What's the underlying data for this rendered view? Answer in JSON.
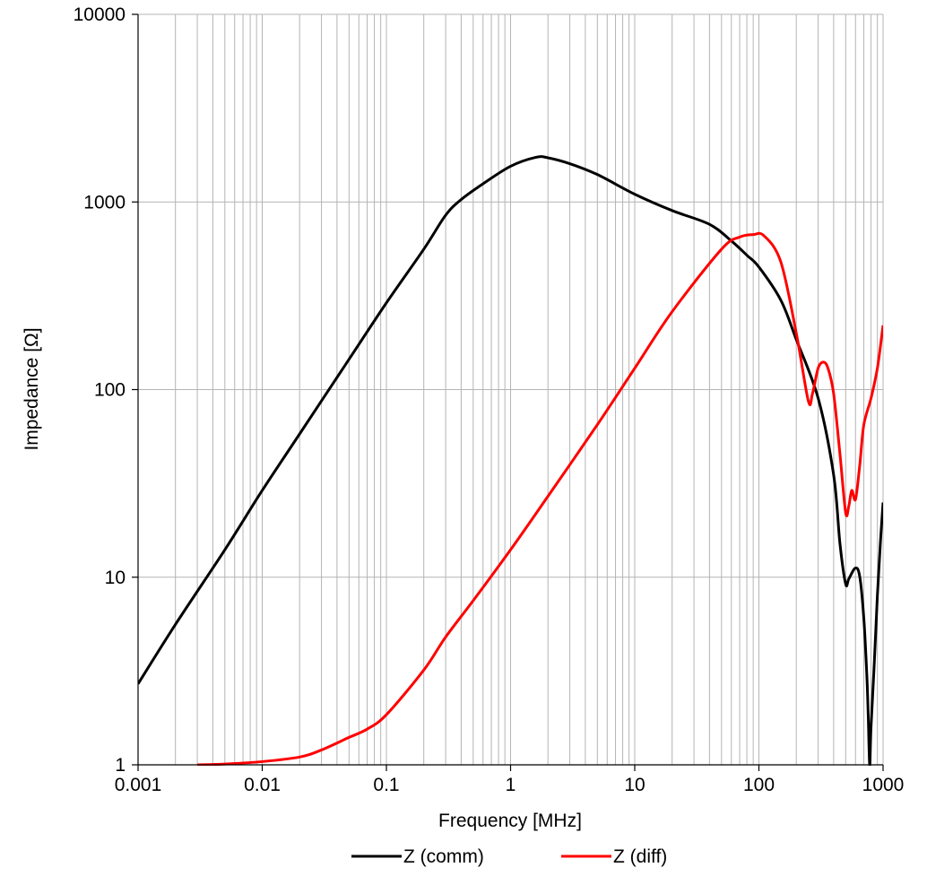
{
  "chart_data": {
    "type": "line",
    "title": "",
    "xlabel": "Frequency [MHz]",
    "ylabel": "Impedance [Ω]",
    "xscale": "log",
    "yscale": "log",
    "xlim": [
      0.001,
      1000
    ],
    "ylim": [
      1,
      10000
    ],
    "grid": "on (major and minor vertical, major horizontal)",
    "legend": "bottom",
    "x_ticks": [
      "0.001",
      "0.01",
      "0.1",
      "1",
      "10",
      "100",
      "1000"
    ],
    "y_ticks": [
      "1",
      "10",
      "100",
      "1000",
      "10000"
    ],
    "series": [
      {
        "name": "Z (comm)",
        "color": "#000000",
        "points": [
          [
            0.001,
            2.7
          ],
          [
            0.002,
            5.6
          ],
          [
            0.005,
            14
          ],
          [
            0.01,
            29
          ],
          [
            0.02,
            58
          ],
          [
            0.05,
            145
          ],
          [
            0.1,
            290
          ],
          [
            0.2,
            560
          ],
          [
            0.3,
            850
          ],
          [
            0.4,
            1030
          ],
          [
            0.6,
            1250
          ],
          [
            1.0,
            1550
          ],
          [
            1.6,
            1730
          ],
          [
            2.0,
            1720
          ],
          [
            3.0,
            1600
          ],
          [
            5.0,
            1400
          ],
          [
            10,
            1100
          ],
          [
            20,
            900
          ],
          [
            40,
            760
          ],
          [
            60,
            620
          ],
          [
            80,
            520
          ],
          [
            100,
            450
          ],
          [
            150,
            300
          ],
          [
            200,
            185
          ],
          [
            300,
            90
          ],
          [
            400,
            35
          ],
          [
            450,
            15
          ],
          [
            500,
            9.2
          ],
          [
            530,
            9.8
          ],
          [
            600,
            11.2
          ],
          [
            650,
            10
          ],
          [
            700,
            6
          ],
          [
            740,
            3
          ],
          [
            760,
            1.8
          ],
          [
            780,
            1
          ],
          [
            800,
            1.6
          ],
          [
            850,
            3.5
          ],
          [
            900,
            8
          ],
          [
            950,
            15
          ],
          [
            1000,
            25
          ]
        ]
      },
      {
        "name": "Z (diff)",
        "color": "#ff0000",
        "points": [
          [
            0.003,
            1.0
          ],
          [
            0.005,
            1.01
          ],
          [
            0.01,
            1.04
          ],
          [
            0.02,
            1.1
          ],
          [
            0.03,
            1.2
          ],
          [
            0.05,
            1.4
          ],
          [
            0.07,
            1.55
          ],
          [
            0.1,
            1.85
          ],
          [
            0.2,
            3.2
          ],
          [
            0.3,
            4.8
          ],
          [
            0.5,
            7.5
          ],
          [
            1.0,
            14
          ],
          [
            2.0,
            27
          ],
          [
            5.0,
            65
          ],
          [
            10,
            130
          ],
          [
            20,
            260
          ],
          [
            50,
            560
          ],
          [
            70,
            650
          ],
          [
            90,
            670
          ],
          [
            110,
            660
          ],
          [
            150,
            480
          ],
          [
            200,
            200
          ],
          [
            250,
            87
          ],
          [
            270,
            95
          ],
          [
            300,
            130
          ],
          [
            330,
            140
          ],
          [
            360,
            130
          ],
          [
            400,
            95
          ],
          [
            450,
            45
          ],
          [
            500,
            22
          ],
          [
            530,
            24
          ],
          [
            560,
            29
          ],
          [
            600,
            26
          ],
          [
            650,
            40
          ],
          [
            700,
            65
          ],
          [
            800,
            90
          ],
          [
            900,
            130
          ],
          [
            1000,
            220
          ]
        ]
      }
    ]
  }
}
